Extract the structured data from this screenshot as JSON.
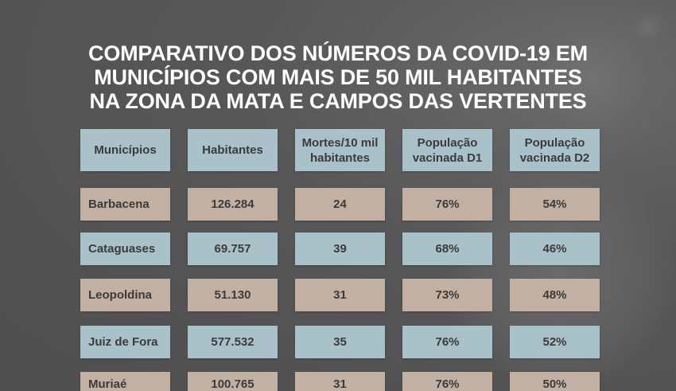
{
  "title_lines": [
    "COMPARATIVO DOS NÚMEROS DA COVID-19 EM",
    "MUNICÍPIOS COM MAIS DE 50 MIL HABITANTES",
    "NA ZONA DA MATA E CAMPOS DAS VERTENTES"
  ],
  "table": {
    "headers": [
      "Municípios",
      "Habitantes",
      "Mortes/10 mil habitantes",
      "População vacinada D1",
      "População vacinada D2"
    ],
    "rows": [
      [
        "Barbacena",
        "126.284",
        "24",
        "76%",
        "54%"
      ],
      [
        "Cataguases",
        "69.757",
        "39",
        "68%",
        "46%"
      ],
      [
        "Leopoldina",
        "51.130",
        "31",
        "73%",
        "48%"
      ],
      [
        "Juiz de Fora",
        "577.532",
        "35",
        "76%",
        "52%"
      ],
      [
        "Muriaé",
        "100.765",
        "31",
        "76%",
        "50%"
      ]
    ]
  },
  "colors": {
    "header": "#a9c1c9",
    "row_a": "#c2b1a2",
    "row_b": "#a9c1c9",
    "background": "#555555"
  }
}
